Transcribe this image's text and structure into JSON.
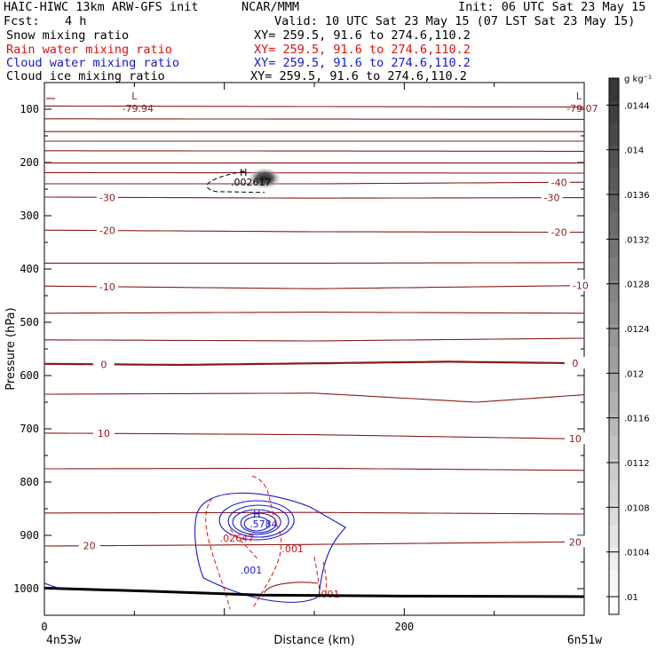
{
  "header": {
    "title_left": "HAIC-HIWC 13km ARW-GFS init",
    "center": "NCAR/MMM",
    "init": "Init: 06 UTC Sat 23 May 15",
    "fcst_label": "Fcst:",
    "fcst_value": "4 h",
    "valid": "Valid: 10 UTC Sat 23 May 15 (07 LST Sat 23 May 15)"
  },
  "fields": [
    {
      "name": "Snow mixing ratio",
      "xy": "XY= 259.5, 91.6 to 274.6,110.2",
      "color": "#000000"
    },
    {
      "name": "Rain water mixing ratio",
      "xy": "XY= 259.5, 91.6 to 274.6,110.2",
      "color": "#e01010"
    },
    {
      "name": "Cloud water mixing ratio",
      "xy": "XY= 259.5, 91.6 to 274.6,110.2",
      "color": "#1818d0"
    },
    {
      "name": "Cloud ice mixing ratio",
      "xy": "XY= 259.5, 91.6 to 274.6,110.2",
      "color": "#000000"
    }
  ],
  "chart_data": {
    "type": "contour-cross-section",
    "xlabel": "Distance (km)",
    "ylabel": "Pressure (hPa)",
    "xlim": [
      0,
      300
    ],
    "ylim": [
      1050,
      50
    ],
    "x_ticks": [
      0,
      200
    ],
    "y_ticks": [
      100,
      200,
      300,
      400,
      500,
      600,
      700,
      800,
      900,
      1000
    ],
    "start_label": "4n53w",
    "end_label": "6n51w",
    "colorbar": {
      "unit": "g kg⁻¹",
      "ticks": [
        ".01",
        ".0104",
        ".0108",
        ".0112",
        ".0116",
        ".012",
        ".0124",
        ".0128",
        ".0132",
        ".0136",
        ".014",
        ".0144"
      ],
      "min": 0.01,
      "max": 0.0148
    },
    "temperature_contours": {
      "color": "#8b1a1a",
      "lines": [
        {
          "values": [
            [
              0,
              94
            ],
            [
              300,
              96
            ]
          ]
        },
        {
          "values": [
            [
              0,
              118
            ],
            [
              300,
              119
            ]
          ]
        },
        {
          "values": [
            [
              0,
              142
            ],
            [
              300,
              142
            ]
          ]
        },
        {
          "values": [
            [
              0,
              160
            ],
            [
              300,
              160
            ]
          ]
        },
        {
          "values": [
            [
              0,
              178
            ],
            [
              300,
              179
            ]
          ]
        },
        {
          "values": [
            [
              0,
              201
            ],
            [
              300,
              201
            ]
          ]
        },
        {
          "values": [
            [
              0,
              219
            ],
            [
              300,
              220
            ]
          ]
        },
        {
          "label": "-40",
          "label_x": [
            286
          ],
          "values": [
            [
              0,
              240
            ],
            [
              150,
              240
            ],
            [
              300,
              237
            ]
          ]
        },
        {
          "label": "-30",
          "label_x": [
            35,
            282
          ],
          "values": [
            [
              0,
              265
            ],
            [
              150,
              267
            ],
            [
              300,
              266
            ]
          ]
        },
        {
          "label": "-20",
          "label_x": [
            35,
            286
          ],
          "values": [
            [
              0,
              327
            ],
            [
              150,
              330
            ],
            [
              300,
              331
            ]
          ]
        },
        {
          "label": "",
          "values": [
            [
              0,
              389
            ],
            [
              150,
              389
            ],
            [
              300,
              388
            ]
          ]
        },
        {
          "label": "-10",
          "label_x": [
            35,
            298
          ],
          "values": [
            [
              0,
              432
            ],
            [
              150,
              437
            ],
            [
              300,
              431
            ]
          ]
        },
        {
          "label": "",
          "values": [
            [
              0,
              483
            ],
            [
              150,
              481
            ],
            [
              300,
              483
            ]
          ]
        },
        {
          "label": "",
          "values": [
            [
              0,
              533
            ],
            [
              150,
              535
            ],
            [
              300,
              530
            ]
          ]
        },
        {
          "label": "0",
          "label_x": [
            33,
            295
          ],
          "values": [
            [
              0,
              578
            ],
            [
              75,
              580
            ],
            [
              225,
              574
            ],
            [
              300,
              577
            ]
          ],
          "bold": true
        },
        {
          "label": "",
          "values": [
            [
              0,
              635
            ],
            [
              150,
              633
            ],
            [
              240,
              650
            ],
            [
              300,
              636
            ]
          ]
        },
        {
          "label": "10",
          "label_x": [
            33,
            295
          ],
          "values": [
            [
              0,
              708
            ],
            [
              150,
              711
            ],
            [
              300,
              719
            ]
          ]
        },
        {
          "label": "",
          "values": [
            [
              0,
              775
            ],
            [
              150,
              774
            ],
            [
              300,
              778
            ]
          ]
        },
        {
          "label": "",
          "values": [
            [
              0,
              858
            ],
            [
              150,
              857
            ],
            [
              300,
              860
            ]
          ]
        },
        {
          "label": "20",
          "label_x": [
            25,
            295
          ],
          "values": [
            [
              0,
              920
            ],
            [
              150,
              917
            ],
            [
              300,
              912
            ]
          ]
        }
      ],
      "lows": [
        {
          "label": "L",
          "value": "-79.94",
          "x": 50,
          "p": 85
        },
        {
          "label": "L",
          "value": "-79.07",
          "x": 297,
          "p": 85
        }
      ]
    },
    "ice_max": {
      "label": "H",
      "value": ".002617",
      "x": 115,
      "p": 238
    },
    "cloud_water": {
      "color": "#1818d0",
      "max_label": "H",
      "max_value": ".5784",
      "max_x": 118,
      "max_p": 880,
      "contour_label": ".001",
      "contour_label_x": 115,
      "contour_label_p": 965
    },
    "rain_water": {
      "color": "#e01010",
      "labels": [
        {
          "text": ".02647",
          "x": 107,
          "p": 905
        },
        {
          "text": ".001",
          "x": 138,
          "p": 925
        },
        {
          "text": ".001",
          "x": 158,
          "p": 1010
        }
      ]
    },
    "terrain": {
      "values": [
        [
          0,
          999
        ],
        [
          60,
          1005
        ],
        [
          120,
          1012
        ],
        [
          200,
          1014
        ],
        [
          300,
          1015
        ]
      ]
    }
  }
}
